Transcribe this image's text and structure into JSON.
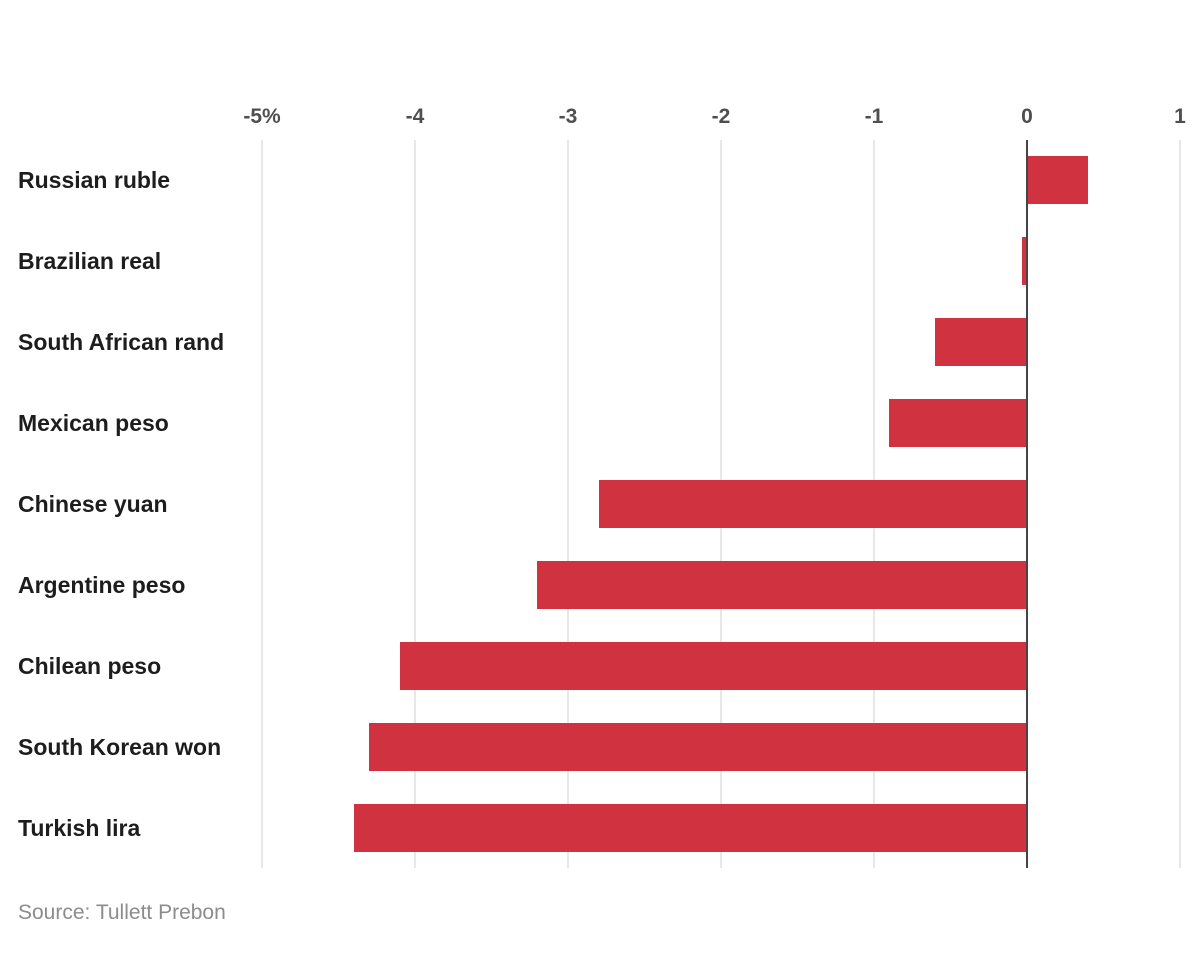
{
  "source_note": "Source: Tullett Prebon",
  "colors": {
    "background": "#ffffff",
    "bar": "#d0323f",
    "gridline": "#e7e7e7",
    "zero_line": "#454545",
    "category_label": "#1d1d1d",
    "tick_label": "#4f4f4f",
    "source_text": "#8c8c8c"
  },
  "chart_data": {
    "type": "bar",
    "orientation": "horizontal",
    "unit": "percent",
    "categories": [
      "Russian ruble",
      "Brazilian real",
      "South African rand",
      "Mexican peso",
      "Chinese yuan",
      "Argentine peso",
      "Chilean peso",
      "South Korean won",
      "Turkish lira"
    ],
    "values": [
      0.4,
      -0.03,
      -0.6,
      -0.9,
      -2.8,
      -3.2,
      -4.1,
      -4.3,
      -4.4
    ],
    "xlim": [
      -5,
      1
    ],
    "tick_values": [
      -5,
      -4,
      -3,
      -2,
      -1,
      0,
      1
    ],
    "tick_labels": [
      "-5%",
      "-4",
      "-3",
      "-2",
      "-1",
      "0",
      "1"
    ],
    "grid": true,
    "legend": false
  }
}
